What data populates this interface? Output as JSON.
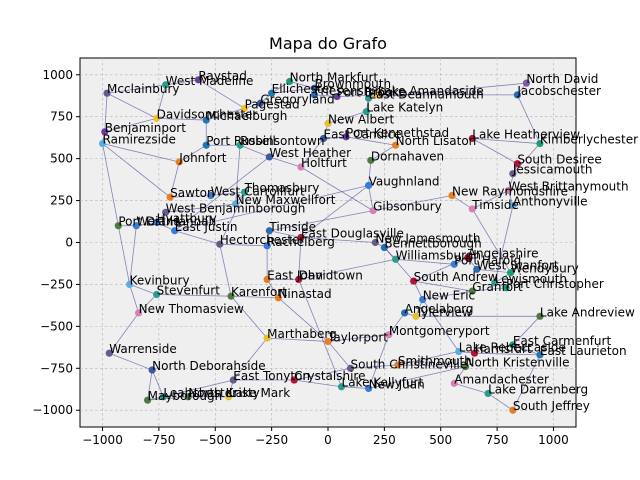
{
  "chart_data": {
    "type": "scatter",
    "title": "Mapa do Grafo",
    "xlabel": "",
    "ylabel": "",
    "xlim": [
      -1100,
      1100
    ],
    "ylim": [
      -1100,
      1100
    ],
    "xticks": [
      -1000,
      -750,
      -500,
      -250,
      0,
      250,
      500,
      750,
      1000
    ],
    "yticks": [
      -1000,
      -750,
      -500,
      -250,
      0,
      250,
      500,
      750,
      1000
    ],
    "grid": true,
    "series": [
      {
        "points": [
          {
            "label": "Raystad",
            "x": -575,
            "y": 970,
            "color": "#6a3d9a"
          },
          {
            "label": "West Madeline",
            "x": -720,
            "y": 940,
            "color": "#2a9d8f"
          },
          {
            "label": "Mcclainbury",
            "x": -980,
            "y": 890,
            "color": "#6a5a8a"
          },
          {
            "label": "North Markfurt",
            "x": -170,
            "y": 960,
            "color": "#1b9e77"
          },
          {
            "label": "Ellichester",
            "x": -250,
            "y": 890,
            "color": "#1f77b4"
          },
          {
            "label": "Brownmouth",
            "x": -60,
            "y": 920,
            "color": "#3a5ba0"
          },
          {
            "label": "Friesenshire",
            "x": -60,
            "y": 880,
            "color": "#2b6cb0"
          },
          {
            "label": "Port Brooke",
            "x": 40,
            "y": 870,
            "color": "#6a3d9a"
          },
          {
            "label": "Lake Amandaside",
            "x": 220,
            "y": 880,
            "color": "#f2c12e"
          },
          {
            "label": "East Deannamouth",
            "x": 180,
            "y": 860,
            "color": "#2a9d8f"
          },
          {
            "label": "North David",
            "x": 880,
            "y": 950,
            "color": "#7d5ba6"
          },
          {
            "label": "Jacobschester",
            "x": 840,
            "y": 880,
            "color": "#2b6cb0"
          },
          {
            "label": "Gregoryland",
            "x": -300,
            "y": 830,
            "color": "#3a5ba0"
          },
          {
            "label": "Pagestad",
            "x": -370,
            "y": 800,
            "color": "#f2c12e"
          },
          {
            "label": "Lake Katelyn",
            "x": 170,
            "y": 780,
            "color": "#2a9d8f"
          },
          {
            "label": "Davidsonchester",
            "x": -760,
            "y": 740,
            "color": "#f2c12e"
          },
          {
            "label": "Michaelburgh",
            "x": -540,
            "y": 730,
            "color": "#1f77b4"
          },
          {
            "label": "Benjaminport",
            "x": -990,
            "y": 660,
            "color": "#6a3d9a"
          },
          {
            "label": "Ramirezside",
            "x": -1000,
            "y": 590,
            "color": "#5dade2"
          },
          {
            "label": "New Albert",
            "x": 0,
            "y": 710,
            "color": "#e6c229"
          },
          {
            "label": "Port Russell",
            "x": -540,
            "y": 580,
            "color": "#1f77b4"
          },
          {
            "label": "Robinsontown",
            "x": -390,
            "y": 580,
            "color": "#2a9d8f"
          },
          {
            "label": "East Candice",
            "x": -20,
            "y": 620,
            "color": "#3a5ba0"
          },
          {
            "label": "Port Kennethstad",
            "x": 80,
            "y": 630,
            "color": "#6a3d9a"
          },
          {
            "label": "North Lisaton",
            "x": 300,
            "y": 580,
            "color": "#e67e22"
          },
          {
            "label": "Lake Heatherview",
            "x": 640,
            "y": 620,
            "color": "#b5123b"
          },
          {
            "label": "Kimberlychester",
            "x": 940,
            "y": 590,
            "color": "#1b9e77"
          },
          {
            "label": "Johnfort",
            "x": -660,
            "y": 480,
            "color": "#e67e22"
          },
          {
            "label": "West Heather",
            "x": -260,
            "y": 510,
            "color": "#3a5ba0"
          },
          {
            "label": "Dornahaven",
            "x": 190,
            "y": 490,
            "color": "#4f7942"
          },
          {
            "label": "Holtfurt",
            "x": -120,
            "y": 450,
            "color": "#d87fb5"
          },
          {
            "label": "South Desiree",
            "x": 840,
            "y": 470,
            "color": "#b5123b"
          },
          {
            "label": "Jessicamouth",
            "x": 820,
            "y": 410,
            "color": "#6a5a8a"
          },
          {
            "label": "Vaughnland",
            "x": 180,
            "y": 340,
            "color": "#3a7bd5"
          },
          {
            "label": "Sawton",
            "x": -700,
            "y": 270,
            "color": "#e67e22"
          },
          {
            "label": "West Carrollfurt",
            "x": -520,
            "y": 280,
            "color": "#3a7bd5"
          },
          {
            "label": "Thomasbury",
            "x": -370,
            "y": 300,
            "color": "#2a9d8f"
          },
          {
            "label": "New Maxwellfort",
            "x": -410,
            "y": 230,
            "color": "#5dade2"
          },
          {
            "label": "New Raymondshire",
            "x": 550,
            "y": 280,
            "color": "#e67e22"
          },
          {
            "label": "West Brittanymouth",
            "x": 800,
            "y": 310,
            "color": "#d87fb5"
          },
          {
            "label": "Anthonyville",
            "x": 820,
            "y": 220,
            "color": "#5dade2"
          },
          {
            "label": "Gibsonbury",
            "x": 200,
            "y": 190,
            "color": "#d87fb5"
          },
          {
            "label": "Timside",
            "x": 640,
            "y": 200,
            "color": "#d87fb5"
          },
          {
            "label": "West Benjaminborough",
            "x": -720,
            "y": 180,
            "color": "#6a5a8a"
          },
          {
            "label": "Port Diana",
            "x": -930,
            "y": 100,
            "color": "#4f7942"
          },
          {
            "label": "West Hannah",
            "x": -850,
            "y": 100,
            "color": "#3a7bd5"
          },
          {
            "label": "Hyattbury",
            "x": -760,
            "y": 120,
            "color": "#3a7bd5"
          },
          {
            "label": "East Justin",
            "x": -680,
            "y": 70,
            "color": "#3a7bd5"
          },
          {
            "label": "Timside",
            "x": -260,
            "y": 70,
            "color": "#2b6cb0"
          },
          {
            "label": "East Douglasville",
            "x": -120,
            "y": 30,
            "color": "#b5123b"
          },
          {
            "label": "Hectorchester",
            "x": -480,
            "y": -10,
            "color": "#6a5a8a"
          },
          {
            "label": "Rachelberg",
            "x": -270,
            "y": -20,
            "color": "#3a7bd5"
          },
          {
            "label": "New Jamesmouth",
            "x": 210,
            "y": 0,
            "color": "#6a5a8a"
          },
          {
            "label": "Bennettborough",
            "x": 250,
            "y": -30,
            "color": "#2b6cb0"
          },
          {
            "label": "Williamsburgh",
            "x": 300,
            "y": -100,
            "color": "#2a9d8f"
          },
          {
            "label": "Angelashire",
            "x": 620,
            "y": -90,
            "color": "#b5123b"
          },
          {
            "label": "Port Harold",
            "x": 560,
            "y": -130,
            "color": "#3a7bd5"
          },
          {
            "label": "West Stanfort",
            "x": 660,
            "y": -160,
            "color": "#2b6cb0"
          },
          {
            "label": "Wendybury",
            "x": 810,
            "y": -180,
            "color": "#1b9e77"
          },
          {
            "label": "East John",
            "x": -270,
            "y": -220,
            "color": "#e67e22"
          },
          {
            "label": "Davidtown",
            "x": -130,
            "y": -220,
            "color": "#b5123b"
          },
          {
            "label": "South Andrew",
            "x": 380,
            "y": -230,
            "color": "#b5123b"
          },
          {
            "label": "Lewismouth",
            "x": 740,
            "y": -240,
            "color": "#2a9d8f"
          },
          {
            "label": "Port Christopher",
            "x": 790,
            "y": -270,
            "color": "#1b9e77"
          },
          {
            "label": "Kevinbury",
            "x": -880,
            "y": -250,
            "color": "#5dade2"
          },
          {
            "label": "Stevenfurt",
            "x": -760,
            "y": -310,
            "color": "#2a9d8f"
          },
          {
            "label": "Karenfort",
            "x": -430,
            "y": -320,
            "color": "#4f7942"
          },
          {
            "label": "Ninastad",
            "x": -220,
            "y": -330,
            "color": "#e67e22"
          },
          {
            "label": "Granfort",
            "x": 640,
            "y": -290,
            "color": "#4f7942"
          },
          {
            "label": "New Eric",
            "x": 420,
            "y": -340,
            "color": "#3a7bd5"
          },
          {
            "label": "New Thomasview",
            "x": -840,
            "y": -420,
            "color": "#d87fb5"
          },
          {
            "label": "Angelaborg",
            "x": 340,
            "y": -420,
            "color": "#2b6cb0"
          },
          {
            "label": "Tylerview",
            "x": 390,
            "y": -440,
            "color": "#e6c229"
          },
          {
            "label": "Lake Andreview",
            "x": 940,
            "y": -440,
            "color": "#4f7942"
          },
          {
            "label": "Marthaberg",
            "x": -270,
            "y": -570,
            "color": "#e6c229"
          },
          {
            "label": "Montgomeryport",
            "x": 270,
            "y": -550,
            "color": "#d87fb5"
          },
          {
            "label": "Taylorport",
            "x": 0,
            "y": -590,
            "color": "#e67e22"
          },
          {
            "label": "Warrenside",
            "x": -970,
            "y": -660,
            "color": "#6a5a8a"
          },
          {
            "label": "Lake Rebeccaside",
            "x": 580,
            "y": -650,
            "color": "#5dade2"
          },
          {
            "label": "East Carmenfurt",
            "x": 820,
            "y": -610,
            "color": "#2a9d8f"
          },
          {
            "label": "Harrisfurt",
            "x": 650,
            "y": -660,
            "color": "#b5123b"
          },
          {
            "label": "East Laurieton",
            "x": 940,
            "y": -670,
            "color": "#1f77b4"
          },
          {
            "label": "North Deborahside",
            "x": -780,
            "y": -760,
            "color": "#3a5ba0"
          },
          {
            "label": "South Christineville",
            "x": 100,
            "y": -750,
            "color": "#6a5a8a"
          },
          {
            "label": "Smithmouth",
            "x": 310,
            "y": -730,
            "color": "#e67e22"
          },
          {
            "label": "North Kristenville",
            "x": 610,
            "y": -740,
            "color": "#4f7942"
          },
          {
            "label": "East Tonyton",
            "x": -420,
            "y": -820,
            "color": "#6a5a8a"
          },
          {
            "label": "Crystalshire",
            "x": -150,
            "y": -820,
            "color": "#b5123b"
          },
          {
            "label": "Amandachester",
            "x": 560,
            "y": -840,
            "color": "#d87fb5"
          },
          {
            "label": "Lake Kellyfurt",
            "x": 60,
            "y": -860,
            "color": "#2a9d8f"
          },
          {
            "label": "New Juan",
            "x": 180,
            "y": -870,
            "color": "#3a7bd5"
          },
          {
            "label": "Lake Darrenberg",
            "x": 710,
            "y": -900,
            "color": "#2a9d8f"
          },
          {
            "label": "Mayborough",
            "x": -800,
            "y": -940,
            "color": "#4f7942"
          },
          {
            "label": "Leahchester",
            "x": -730,
            "y": -920,
            "color": "#2a9d8f"
          },
          {
            "label": "North Kristy",
            "x": -620,
            "y": -920,
            "color": "#4f7942"
          },
          {
            "label": "Lake Mark",
            "x": -440,
            "y": -920,
            "color": "#e6c229"
          },
          {
            "label": "South Jeffrey",
            "x": 820,
            "y": -1000,
            "color": "#e67e22"
          }
        ]
      }
    ],
    "edges": [
      [
        2,
        17
      ],
      [
        2,
        15
      ],
      [
        2,
        1
      ],
      [
        17,
        18
      ],
      [
        17,
        15
      ],
      [
        15,
        1
      ],
      [
        15,
        16
      ],
      [
        1,
        0
      ],
      [
        16,
        13
      ],
      [
        16,
        20
      ],
      [
        13,
        12
      ],
      [
        12,
        4
      ],
      [
        4,
        3
      ],
      [
        4,
        5
      ],
      [
        3,
        5
      ],
      [
        5,
        6
      ],
      [
        6,
        7
      ],
      [
        7,
        8
      ],
      [
        8,
        9
      ],
      [
        9,
        14
      ],
      [
        14,
        19
      ],
      [
        19,
        22
      ],
      [
        22,
        23
      ],
      [
        23,
        24
      ],
      [
        24,
        29
      ],
      [
        29,
        33
      ],
      [
        33,
        41
      ],
      [
        41,
        38
      ],
      [
        38,
        42
      ],
      [
        42,
        39
      ],
      [
        39,
        40
      ],
      [
        39,
        31
      ],
      [
        31,
        32
      ],
      [
        31,
        25
      ],
      [
        25,
        26
      ],
      [
        26,
        11
      ],
      [
        11,
        10
      ],
      [
        10,
        9
      ],
      [
        11,
        8
      ],
      [
        26,
        32
      ],
      [
        20,
        21
      ],
      [
        21,
        28
      ],
      [
        28,
        30
      ],
      [
        30,
        22
      ],
      [
        27,
        20
      ],
      [
        27,
        18
      ],
      [
        27,
        34
      ],
      [
        34,
        35
      ],
      [
        35,
        36
      ],
      [
        36,
        37
      ],
      [
        37,
        43
      ],
      [
        43,
        46
      ],
      [
        46,
        45
      ],
      [
        45,
        44
      ],
      [
        44,
        18
      ],
      [
        47,
        46
      ],
      [
        47,
        50
      ],
      [
        50,
        51
      ],
      [
        51,
        48
      ],
      [
        48,
        49
      ],
      [
        49,
        52
      ],
      [
        52,
        53
      ],
      [
        53,
        54
      ],
      [
        54,
        56
      ],
      [
        56,
        55
      ],
      [
        55,
        57
      ],
      [
        57,
        58
      ],
      [
        58,
        62
      ],
      [
        62,
        63
      ],
      [
        63,
        68
      ],
      [
        68,
        61
      ],
      [
        61,
        53
      ],
      [
        55,
        61
      ],
      [
        58,
        42
      ],
      [
        62,
        40
      ],
      [
        48,
        41
      ],
      [
        49,
        33
      ],
      [
        50,
        36
      ],
      [
        59,
        51
      ],
      [
        59,
        60
      ],
      [
        60,
        49
      ],
      [
        60,
        54
      ],
      [
        59,
        67
      ],
      [
        67,
        66
      ],
      [
        66,
        50
      ],
      [
        66,
        65
      ],
      [
        65,
        64
      ],
      [
        64,
        45
      ],
      [
        65,
        70
      ],
      [
        70,
        77
      ],
      [
        77,
        82
      ],
      [
        82,
        93
      ],
      [
        93,
        92
      ],
      [
        92,
        94
      ],
      [
        94,
        95
      ],
      [
        95,
        86
      ],
      [
        86,
        74
      ],
      [
        74,
        66
      ],
      [
        74,
        76
      ],
      [
        76,
        67
      ],
      [
        76,
        75
      ],
      [
        75,
        71
      ],
      [
        71,
        72
      ],
      [
        72,
        69
      ],
      [
        69,
        61
      ],
      [
        69,
        68
      ],
      [
        72,
        73
      ],
      [
        73,
        79
      ],
      [
        79,
        81
      ],
      [
        81,
        80
      ],
      [
        80,
        78
      ],
      [
        78,
        84
      ],
      [
        84,
        85
      ],
      [
        85,
        88
      ],
      [
        88,
        91
      ],
      [
        91,
        96
      ],
      [
        96,
        81
      ],
      [
        78,
        69
      ],
      [
        84,
        83
      ],
      [
        83,
        87
      ],
      [
        87,
        89
      ],
      [
        89,
        90
      ],
      [
        90,
        85
      ],
      [
        83,
        76
      ],
      [
        87,
        86
      ],
      [
        90,
        75
      ],
      [
        89,
        60
      ],
      [
        28,
        47
      ],
      [
        47,
        33
      ],
      [
        37,
        21
      ],
      [
        30,
        41
      ],
      [
        0,
        13
      ],
      [
        18,
        34
      ],
      [
        44,
        64
      ],
      [
        82,
        92
      ],
      [
        86,
        93
      ],
      [
        70,
        64
      ]
    ]
  }
}
